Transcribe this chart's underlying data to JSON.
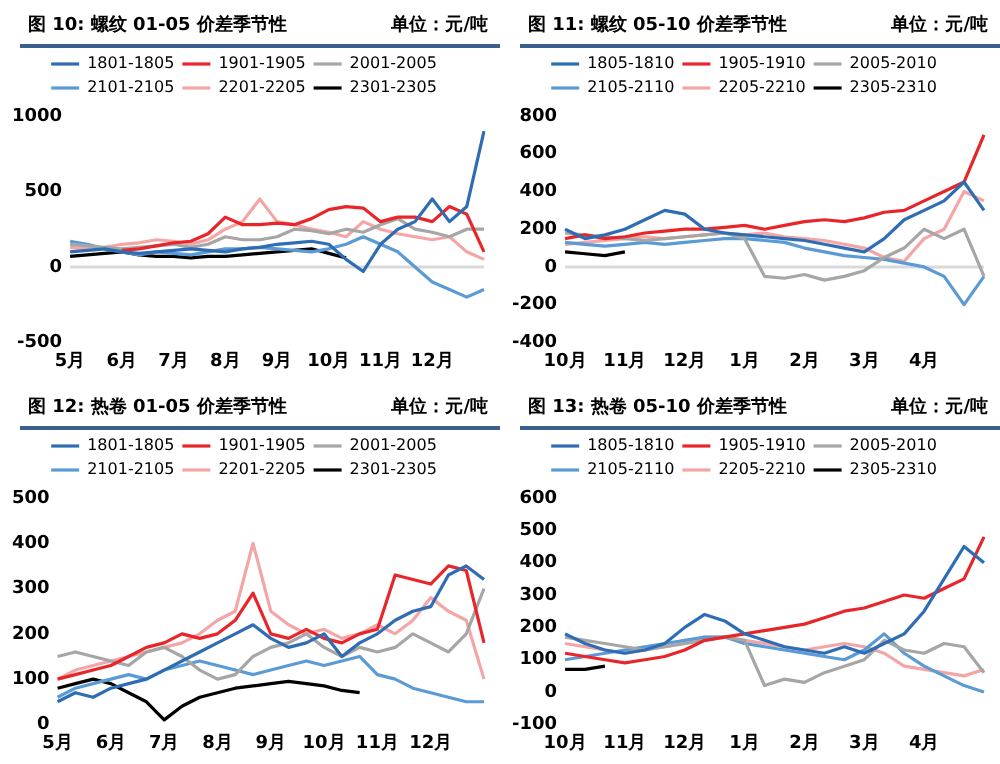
{
  "chart_data": [
    {
      "type": "line",
      "title": "图 10:  螺纹 01-05 价差季节性",
      "subtitle": "单位：元/吨",
      "categories": [
        "5月",
        null,
        null,
        "6月",
        null,
        null,
        "7月",
        null,
        null,
        "8月",
        null,
        null,
        "9月",
        null,
        null,
        "10月",
        null,
        null,
        "11月",
        null,
        null,
        "12月",
        null,
        null,
        null
      ],
      "series": [
        {
          "name": "1801-1805",
          "color": "#2e6db4",
          "values": [
            100,
            110,
            120,
            100,
            90,
            100,
            110,
            120,
            110,
            100,
            120,
            130,
            150,
            160,
            170,
            150,
            50,
            -30,
            150,
            250,
            300,
            450,
            300,
            400,
            900
          ]
        },
        {
          "name": "1901-1905",
          "color": "#e8262a",
          "values": [
            null,
            null,
            null,
            110,
            120,
            140,
            160,
            170,
            220,
            330,
            280,
            280,
            290,
            280,
            320,
            380,
            400,
            390,
            300,
            330,
            330,
            300,
            400,
            350,
            100
          ]
        },
        {
          "name": "2001-2005",
          "color": "#a6a6a6",
          "values": [
            150,
            140,
            130,
            120,
            130,
            140,
            150,
            130,
            150,
            200,
            180,
            180,
            200,
            250,
            240,
            220,
            250,
            230,
            280,
            320,
            250,
            230,
            200,
            250,
            250
          ]
        },
        {
          "name": "2101-2105",
          "color": "#5b9bd5",
          "values": [
            170,
            150,
            120,
            100,
            80,
            100,
            90,
            80,
            100,
            120,
            120,
            130,
            120,
            110,
            100,
            120,
            150,
            200,
            150,
            100,
            0,
            -100,
            -150,
            -200,
            -150
          ]
        },
        {
          "name": "2201-2205",
          "color": "#f4a6a6",
          "values": [
            130,
            120,
            130,
            150,
            160,
            180,
            170,
            150,
            180,
            250,
            300,
            450,
            300,
            280,
            250,
            230,
            200,
            300,
            250,
            220,
            200,
            180,
            200,
            100,
            50
          ]
        },
        {
          "name": "2301-2305",
          "color": "#000000",
          "values": [
            70,
            80,
            90,
            100,
            80,
            70,
            70,
            60,
            70,
            70,
            80,
            90,
            100,
            110,
            120,
            90,
            60,
            null,
            null,
            null,
            null,
            null,
            null,
            null,
            null
          ]
        }
      ],
      "ylim": [
        -500,
        1000
      ],
      "yticks": [
        -500,
        0,
        500,
        1000
      ],
      "legend": "top",
      "marker": "none",
      "ref_lines": [
        {
          "axis": "y",
          "value": 0,
          "color": "#d9d9d9"
        }
      ]
    },
    {
      "type": "line",
      "title": "图 11:  螺纹 05-10 价差季节性",
      "subtitle": "单位：元/吨",
      "categories": [
        "10月",
        null,
        null,
        "11月",
        null,
        null,
        "12月",
        null,
        null,
        "1月",
        null,
        null,
        "2月",
        null,
        null,
        "3月",
        null,
        null,
        "4月",
        null,
        null,
        null
      ],
      "series": [
        {
          "name": "1805-1810",
          "color": "#2e6db4",
          "values": [
            200,
            150,
            170,
            200,
            250,
            300,
            280,
            200,
            180,
            170,
            160,
            150,
            140,
            120,
            100,
            80,
            150,
            250,
            300,
            350,
            450,
            300
          ]
        },
        {
          "name": "1905-1910",
          "color": "#e8262a",
          "values": [
            150,
            170,
            150,
            160,
            180,
            190,
            200,
            200,
            210,
            220,
            200,
            220,
            240,
            250,
            240,
            260,
            290,
            300,
            350,
            400,
            450,
            700
          ]
        },
        {
          "name": "2005-2010",
          "color": "#a6a6a6",
          "values": [
            180,
            170,
            160,
            150,
            140,
            150,
            160,
            170,
            180,
            150,
            -50,
            -60,
            -40,
            -70,
            -50,
            -20,
            50,
            100,
            200,
            150,
            200,
            -50
          ]
        },
        {
          "name": "2105-2110",
          "color": "#5b9bd5",
          "values": [
            130,
            120,
            110,
            120,
            130,
            120,
            130,
            140,
            150,
            150,
            140,
            130,
            100,
            80,
            60,
            50,
            40,
            20,
            0,
            -50,
            -200,
            -50
          ]
        },
        {
          "name": "2205-2210",
          "color": "#f4a6a6",
          "values": [
            120,
            130,
            140,
            150,
            160,
            150,
            160,
            170,
            180,
            170,
            180,
            160,
            150,
            140,
            120,
            100,
            50,
            30,
            150,
            200,
            400,
            350
          ]
        },
        {
          "name": "2305-2310",
          "color": "#000000",
          "values": [
            80,
            70,
            60,
            80,
            null,
            null,
            null,
            null,
            null,
            null,
            null,
            null,
            null,
            null,
            null,
            null,
            null,
            null,
            null,
            null,
            null,
            null
          ]
        }
      ],
      "ylim": [
        -400,
        800
      ],
      "yticks": [
        -400,
        -200,
        0,
        200,
        400,
        600,
        800
      ],
      "legend": "top",
      "marker": "none",
      "ref_lines": [
        {
          "axis": "y",
          "value": 0,
          "color": "#d9d9d9"
        }
      ]
    },
    {
      "type": "line",
      "title": "图 12:  热卷 01-05 价差季节性",
      "subtitle": "单位：元/吨",
      "categories": [
        "5月",
        null,
        null,
        "6月",
        null,
        null,
        "7月",
        null,
        null,
        "8月",
        null,
        null,
        "9月",
        null,
        null,
        "10月",
        null,
        null,
        "11月",
        null,
        null,
        "12月",
        null,
        null,
        null
      ],
      "series": [
        {
          "name": "1801-1805",
          "color": "#2e6db4",
          "values": [
            50,
            70,
            60,
            80,
            90,
            100,
            120,
            140,
            160,
            180,
            200,
            220,
            190,
            170,
            180,
            200,
            150,
            180,
            200,
            230,
            250,
            260,
            330,
            350,
            320
          ]
        },
        {
          "name": "1901-1905",
          "color": "#e8262a",
          "values": [
            100,
            110,
            120,
            130,
            150,
            170,
            180,
            200,
            190,
            200,
            230,
            290,
            200,
            190,
            210,
            190,
            180,
            200,
            210,
            330,
            320,
            310,
            350,
            340,
            180
          ]
        },
        {
          "name": "2001-2005",
          "color": "#a6a6a6",
          "values": [
            150,
            160,
            150,
            140,
            130,
            160,
            170,
            150,
            120,
            100,
            110,
            150,
            170,
            180,
            200,
            170,
            150,
            170,
            160,
            170,
            200,
            180,
            160,
            200,
            300
          ]
        },
        {
          "name": "2101-2105",
          "color": "#5b9bd5",
          "values": [
            60,
            80,
            90,
            100,
            110,
            100,
            120,
            130,
            140,
            130,
            120,
            110,
            120,
            130,
            140,
            130,
            140,
            150,
            110,
            100,
            80,
            70,
            60,
            50,
            50
          ]
        },
        {
          "name": "2201-2205",
          "color": "#f4a6a6",
          "values": [
            100,
            120,
            130,
            140,
            150,
            160,
            170,
            180,
            200,
            230,
            250,
            400,
            250,
            220,
            200,
            210,
            190,
            200,
            220,
            200,
            230,
            280,
            250,
            230,
            100
          ]
        },
        {
          "name": "2301-2305",
          "color": "#000000",
          "values": [
            80,
            90,
            100,
            90,
            70,
            50,
            10,
            40,
            60,
            70,
            80,
            85,
            90,
            95,
            90,
            85,
            75,
            70,
            null,
            null,
            null,
            null,
            null,
            null,
            null
          ]
        }
      ],
      "ylim": [
        0,
        500
      ],
      "yticks": [
        0,
        100,
        200,
        300,
        400,
        500
      ],
      "legend": "top",
      "marker": "none"
    },
    {
      "type": "line",
      "title": "图 13:  热卷 05-10 价差季节性",
      "subtitle": "单位：元/吨",
      "categories": [
        "10月",
        null,
        null,
        "11月",
        null,
        null,
        "12月",
        null,
        null,
        "1月",
        null,
        null,
        "2月",
        null,
        null,
        "3月",
        null,
        null,
        "4月",
        null,
        null,
        null
      ],
      "series": [
        {
          "name": "1805-1810",
          "color": "#2e6db4",
          "values": [
            180,
            150,
            130,
            120,
            130,
            150,
            200,
            240,
            220,
            180,
            160,
            140,
            130,
            120,
            140,
            120,
            150,
            180,
            250,
            350,
            450,
            400
          ]
        },
        {
          "name": "1905-1910",
          "color": "#e8262a",
          "values": [
            120,
            110,
            100,
            90,
            100,
            110,
            130,
            160,
            170,
            180,
            190,
            200,
            210,
            230,
            250,
            260,
            280,
            300,
            290,
            320,
            350,
            480
          ]
        },
        {
          "name": "2005-2010",
          "color": "#a6a6a6",
          "values": [
            170,
            160,
            150,
            140,
            130,
            140,
            150,
            160,
            170,
            160,
            20,
            40,
            30,
            60,
            80,
            100,
            160,
            130,
            120,
            150,
            140,
            60
          ]
        },
        {
          "name": "2105-2110",
          "color": "#5b9bd5",
          "values": [
            100,
            110,
            120,
            130,
            140,
            150,
            160,
            170,
            170,
            150,
            140,
            130,
            120,
            110,
            100,
            130,
            180,
            120,
            80,
            50,
            20,
            0
          ]
        },
        {
          "name": "2205-2210",
          "color": "#f4a6a6",
          "values": [
            150,
            140,
            130,
            120,
            130,
            140,
            150,
            170,
            170,
            160,
            150,
            140,
            130,
            140,
            150,
            140,
            120,
            80,
            70,
            60,
            50,
            70
          ]
        },
        {
          "name": "2305-2310",
          "color": "#000000",
          "values": [
            70,
            70,
            80,
            null,
            null,
            null,
            null,
            null,
            null,
            null,
            null,
            null,
            null,
            null,
            null,
            null,
            null,
            null,
            null,
            null,
            null,
            null
          ]
        }
      ],
      "ylim": [
        -100,
        600
      ],
      "yticks": [
        -100,
        0,
        100,
        200,
        300,
        400,
        500,
        600
      ],
      "legend": "top",
      "marker": "none"
    }
  ]
}
